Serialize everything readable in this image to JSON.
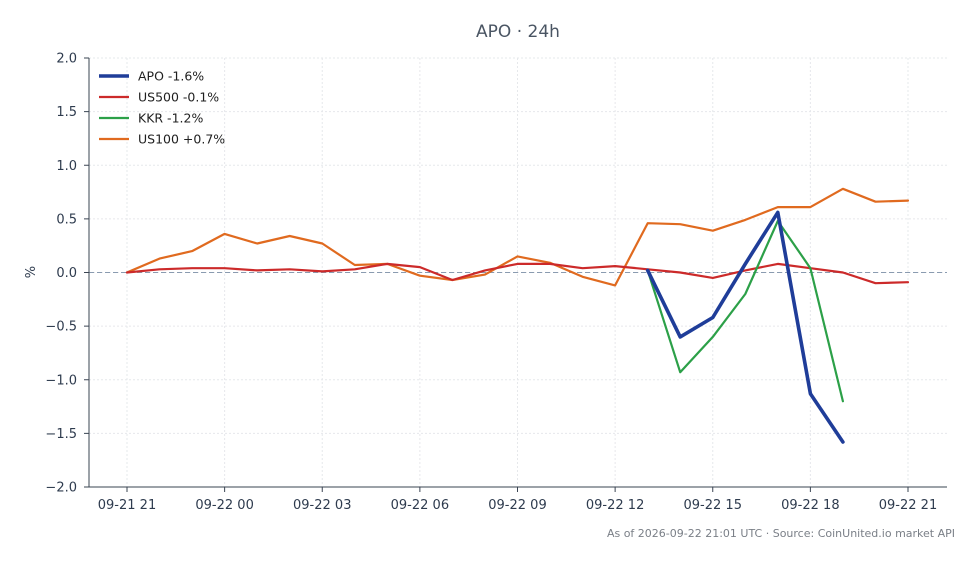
{
  "chart_data": {
    "type": "line",
    "title": "APO · 24h",
    "ylabel": "%",
    "xlabel": "",
    "ylim": [
      -2.0,
      2.0
    ],
    "yticks": [
      2.0,
      1.5,
      1.0,
      0.5,
      0.0,
      -0.5,
      -1.0,
      -1.5,
      -2.0
    ],
    "ytick_labels": [
      "2.0",
      "1.5",
      "1.0",
      "0.5",
      "0.0",
      "−0.5",
      "−1.0",
      "−1.5",
      "−2.0"
    ],
    "xlim": [
      0,
      24
    ],
    "xticks": [
      0,
      3,
      6,
      9,
      12,
      15,
      18,
      21,
      24
    ],
    "xtick_labels": [
      "09-21 21",
      "09-22 00",
      "09-22 03",
      "09-22 06",
      "09-22 09",
      "09-22 12",
      "09-22 15",
      "09-22 18",
      "09-22 21"
    ],
    "grid": true,
    "baseline": 0,
    "legend_position": "top-left",
    "series": [
      {
        "name": "APO -1.6%",
        "color": "#1f3d99",
        "linewidth": "thick",
        "x": [
          16,
          17,
          18,
          19,
          20,
          21,
          22
        ],
        "y": [
          0.02,
          -0.6,
          -0.42,
          0.08,
          0.56,
          -1.13,
          -1.58
        ]
      },
      {
        "name": "US500 -0.1%",
        "color": "#cc2a2a",
        "linewidth": "normal",
        "x": [
          0,
          1,
          2,
          3,
          4,
          5,
          6,
          7,
          8,
          9,
          10,
          11,
          12,
          13,
          14,
          15,
          16,
          17,
          18,
          19,
          20,
          21,
          22,
          23,
          24
        ],
        "y": [
          0.0,
          0.03,
          0.04,
          0.04,
          0.02,
          0.03,
          0.01,
          0.03,
          0.08,
          0.05,
          -0.07,
          0.02,
          0.08,
          0.08,
          0.04,
          0.06,
          0.03,
          0.0,
          -0.05,
          0.02,
          0.08,
          0.04,
          0.0,
          -0.1,
          -0.09
        ]
      },
      {
        "name": "KKR -1.2%",
        "color": "#2ca048",
        "linewidth": "normal",
        "x": [
          16,
          17,
          18,
          19,
          20,
          21,
          22
        ],
        "y": [
          0.02,
          -0.93,
          -0.6,
          -0.2,
          0.48,
          0.04,
          -1.2
        ]
      },
      {
        "name": "US100 +0.7%",
        "color": "#e06a1f",
        "linewidth": "normal",
        "x": [
          0,
          1,
          2,
          3,
          4,
          5,
          6,
          7,
          8,
          9,
          10,
          11,
          12,
          13,
          14,
          15,
          16,
          17,
          18,
          19,
          20,
          21,
          22,
          23,
          24
        ],
        "y": [
          0.0,
          0.13,
          0.2,
          0.36,
          0.27,
          0.34,
          0.27,
          0.07,
          0.08,
          -0.03,
          -0.07,
          -0.02,
          0.15,
          0.09,
          -0.04,
          -0.12,
          0.46,
          0.45,
          0.39,
          0.49,
          0.61,
          0.61,
          0.78,
          0.66,
          0.67
        ]
      }
    ]
  },
  "footer": {
    "text": "As of 2026-09-22 21:01 UTC · Source: CoinUnited.io market API"
  }
}
